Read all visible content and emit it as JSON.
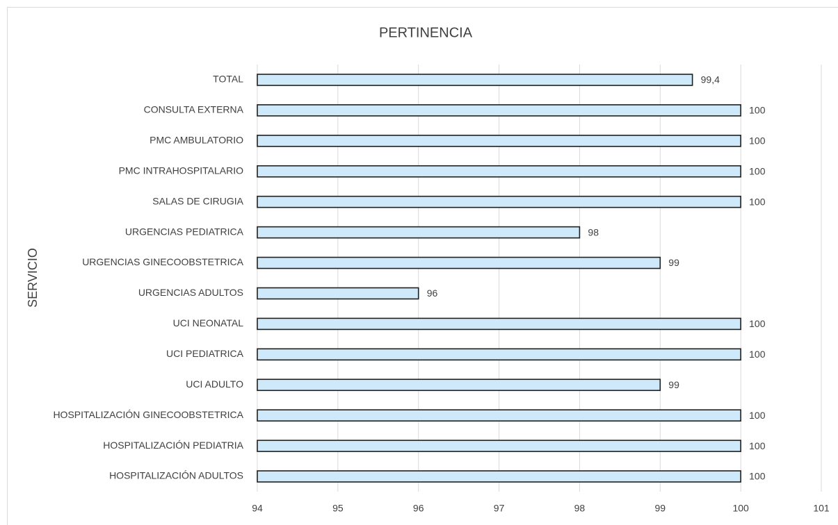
{
  "chart_data": {
    "type": "barh",
    "title": "PERTINENCIA",
    "y_label": "SERVICIO",
    "categories": [
      "TOTAL",
      "CONSULTA EXTERNA",
      "PMC AMBULATORIO",
      "PMC INTRAHOSPITALARIO",
      "SALAS DE CIRUGIA",
      "URGENCIAS PEDIATRICA",
      "URGENCIAS GINECOOBSTETRICA",
      "URGENCIAS ADULTOS",
      "UCI NEONATAL",
      "UCI PEDIATRICA",
      "UCI ADULTO",
      "HOSPITALIZACIÓN GINECOOBSTETRICA",
      "HOSPITALIZACIÓN PEDIATRIA",
      "HOSPITALIZACIÓN ADULTOS"
    ],
    "values": [
      99.4,
      100,
      100,
      100,
      100,
      98,
      99,
      96,
      100,
      100,
      99,
      100,
      100,
      100
    ],
    "value_labels": [
      "99,4",
      "100",
      "100",
      "100",
      "100",
      "98",
      "99",
      "96",
      "100",
      "100",
      "99",
      "100",
      "100",
      "100"
    ],
    "color": "#cde9fa",
    "edge_color": "#1f1f1f",
    "xlim": [
      94,
      101
    ],
    "xticks": [
      94,
      95,
      96,
      97,
      98,
      99,
      100,
      101
    ],
    "grid": true
  }
}
